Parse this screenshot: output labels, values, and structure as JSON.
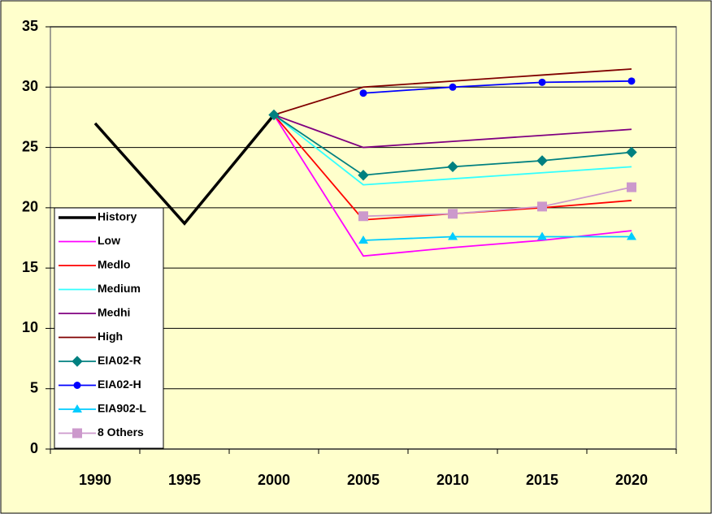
{
  "chart_data": {
    "type": "line",
    "categories": [
      "1990",
      "1995",
      "2000",
      "2005",
      "2010",
      "2015",
      "2020"
    ],
    "ylim": [
      0,
      35
    ],
    "yticks": [
      0,
      5,
      10,
      15,
      20,
      25,
      30,
      35
    ],
    "grid": true,
    "legend": "bottom-left",
    "series": [
      {
        "name": "History",
        "color": "#000000",
        "line_width": 3.5,
        "values": [
          27,
          18.7,
          27.7,
          null,
          null,
          null,
          null
        ]
      },
      {
        "name": "Low",
        "color": "#ff00ff",
        "values": [
          null,
          null,
          27.7,
          16,
          16.7,
          17.3,
          18.1
        ]
      },
      {
        "name": "Medlo",
        "color": "#ff0000",
        "values": [
          null,
          null,
          27.7,
          19,
          19.5,
          20,
          20.6
        ]
      },
      {
        "name": "Medium",
        "color": "#33ffff",
        "values": [
          null,
          null,
          27.7,
          21.9,
          22.4,
          22.9,
          23.4
        ]
      },
      {
        "name": "Medhi",
        "color": "#800080",
        "values": [
          null,
          null,
          27.7,
          25,
          25.5,
          26,
          26.5
        ]
      },
      {
        "name": "High",
        "color": "#800000",
        "values": [
          null,
          null,
          27.7,
          30,
          30.5,
          31,
          31.5
        ]
      },
      {
        "name": "EIA02-R",
        "color": "#008080",
        "marker": "diamond",
        "values": [
          null,
          null,
          27.7,
          22.7,
          23.4,
          23.9,
          24.6
        ]
      },
      {
        "name": "EIA02-H",
        "color": "#0000ff",
        "marker": "circle",
        "values": [
          null,
          null,
          null,
          29.5,
          30,
          30.4,
          30.5
        ]
      },
      {
        "name": "EIA902-L",
        "color": "#00ccff",
        "marker": "triangle",
        "values": [
          null,
          null,
          null,
          17.3,
          17.6,
          17.6,
          17.6
        ]
      },
      {
        "name": "8 Others",
        "color": "#cc99cc",
        "marker": "square",
        "values": [
          null,
          null,
          null,
          19.3,
          19.5,
          20.1,
          21.7
        ]
      }
    ]
  }
}
